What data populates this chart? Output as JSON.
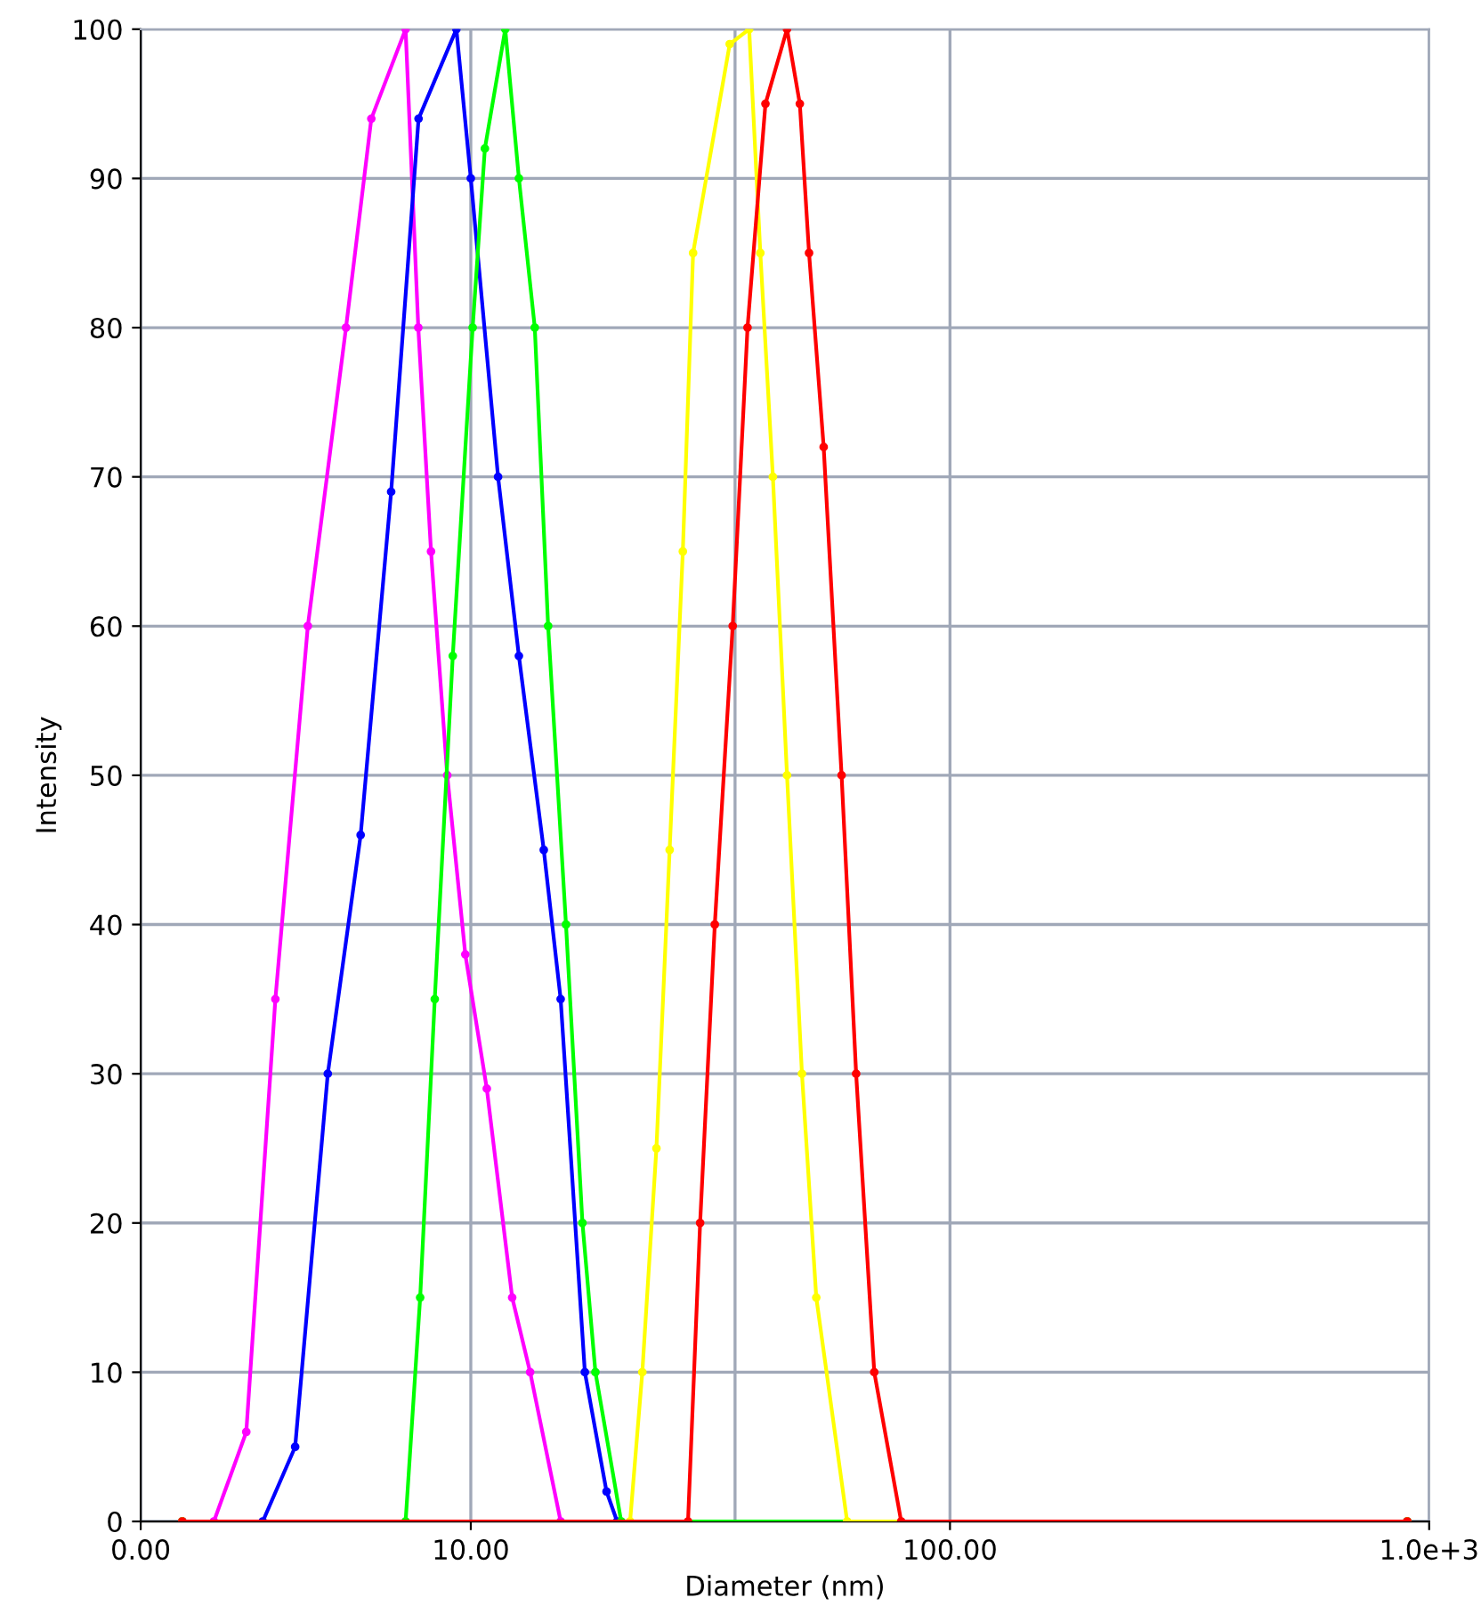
{
  "chart_data": {
    "type": "line",
    "xlabel": "Diameter (nm)",
    "ylabel": "Intensity",
    "log": "x",
    "xlim": [
      0,
      1000
    ],
    "xticks": [
      {
        "value": 0,
        "label": "0.00"
      },
      {
        "value": 10,
        "label": "10.00"
      },
      {
        "value": 100,
        "label": "100.00"
      },
      {
        "value": 1000,
        "label": "1.0e+3"
      }
    ],
    "ylim": [
      0,
      100
    ],
    "yticks": [
      0,
      10,
      20,
      30,
      40,
      50,
      60,
      70,
      80,
      90,
      100
    ],
    "grid": true,
    "legend": false,
    "marker": "circle",
    "line_style": "solid",
    "ref_lines": [
      {
        "axis": "x",
        "value": 35.6,
        "color": "#a0a8b8"
      }
    ],
    "series": [
      {
        "color": "#ff00ff",
        "x": [
          2.5,
          2.91,
          3.4,
          3.91,
          4.57,
          5.49,
          6.2,
          7.31,
          7.77,
          8.26,
          8.93,
          9.74,
          10.8,
          12.2,
          13.3,
          15.4,
          900
        ],
        "values": [
          0,
          0,
          6,
          35,
          60,
          80,
          94,
          100,
          80,
          65,
          50,
          38,
          29,
          15,
          10,
          0,
          0
        ]
      },
      {
        "color": "#0000ff",
        "x": [
          2.5,
          3.68,
          4.3,
          5.03,
          5.89,
          6.82,
          7.78,
          9.33,
          10,
          11.4,
          12.6,
          14.2,
          15.4,
          17.3,
          19.2,
          20.2,
          900
        ],
        "values": [
          0,
          0,
          5,
          30,
          46,
          69,
          94,
          100,
          90,
          70,
          58,
          45,
          35,
          10,
          2,
          0,
          0
        ]
      },
      {
        "color": "#00ff00",
        "x": [
          2.5,
          7.31,
          7.84,
          8.41,
          9.17,
          10.09,
          10.7,
          11.8,
          12.6,
          13.6,
          14.5,
          15.8,
          17.1,
          18.2,
          20.6,
          900
        ],
        "values": [
          0,
          0,
          15,
          35,
          58,
          80,
          92,
          100,
          90,
          80,
          60,
          40,
          20,
          10,
          0,
          0
        ]
      },
      {
        "color": "#ffff00",
        "x": [
          2.5,
          21.5,
          22.8,
          24.4,
          26.0,
          27.7,
          29.1,
          34.7,
          38.1,
          40.2,
          42.7,
          45.7,
          49.1,
          52.6,
          61.0,
          900
        ],
        "values": [
          0,
          0,
          10,
          25,
          45,
          65,
          85,
          99,
          100,
          85,
          70,
          50,
          30,
          15,
          0,
          0
        ]
      },
      {
        "color": "#ff0000",
        "x": [
          2.5,
          28.4,
          30.1,
          32.3,
          35.2,
          37.8,
          41.2,
          45.7,
          48.6,
          50.8,
          54.5,
          59.4,
          63.7,
          69.5,
          79.1,
          900
        ],
        "values": [
          0,
          0,
          20,
          40,
          60,
          80,
          95,
          100,
          95,
          85,
          72,
          50,
          30,
          10,
          0,
          0
        ]
      }
    ]
  }
}
